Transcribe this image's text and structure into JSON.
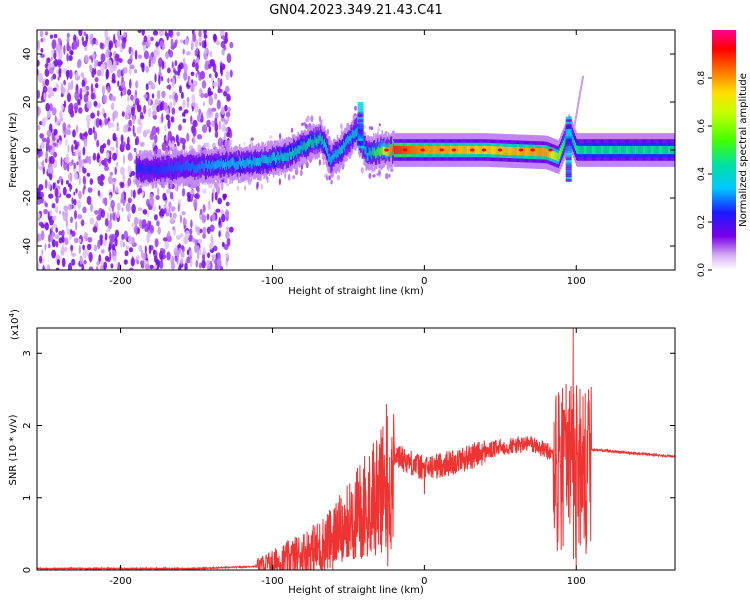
{
  "title": "GN04.2023.349.21.43.C41",
  "colors": {
    "snr_line": "#ee3333",
    "colormap": [
      "#ffffff",
      "#e6c8f7",
      "#a066e8",
      "#6a00e0",
      "#1a1aff",
      "#00c8ff",
      "#00e080",
      "#66ff00",
      "#ffff00",
      "#ff8800",
      "#ff0000",
      "#ff00aa"
    ]
  },
  "chart_data": [
    {
      "type": "heatmap",
      "title": "GN04.2023.349.21.43.C41",
      "xlabel": "Height of straight line (km)",
      "ylabel": "Frequency (Hz)",
      "xlim": [
        -255,
        165
      ],
      "ylim": [
        -50,
        50
      ],
      "x_ticks": [
        -200,
        -100,
        0,
        100
      ],
      "x_tick_labels": [
        "-200",
        "-100",
        "0",
        "100"
      ],
      "y_ticks": [
        40,
        20,
        0,
        -20,
        -40
      ],
      "y_tick_labels": [
        "40",
        "20",
        "0",
        "-20",
        "-40"
      ],
      "colorbar": {
        "label": "Normalized spectral amplitude",
        "range": [
          0,
          1
        ],
        "ticks": [
          0.0,
          0.2,
          0.4,
          0.6,
          0.8
        ],
        "tick_labels": [
          "0.0",
          "0.2",
          "0.4",
          "0.6",
          "0.8"
        ]
      },
      "ridge": {
        "description_points": [
          {
            "x": -180,
            "y": -8,
            "amp": 0.25
          },
          {
            "x": -150,
            "y": -7,
            "amp": 0.3
          },
          {
            "x": -130,
            "y": -6,
            "amp": 0.35
          },
          {
            "x": -110,
            "y": -5,
            "amp": 0.38
          },
          {
            "x": -90,
            "y": -2,
            "amp": 0.42
          },
          {
            "x": -75,
            "y": 3,
            "amp": 0.45
          },
          {
            "x": -68,
            "y": 5,
            "amp": 0.45
          },
          {
            "x": -62,
            "y": -4,
            "amp": 0.35
          },
          {
            "x": -55,
            "y": 0,
            "amp": 0.4
          },
          {
            "x": -45,
            "y": 8,
            "amp": 0.38
          },
          {
            "x": -38,
            "y": -2,
            "amp": 0.4
          },
          {
            "x": -30,
            "y": 0,
            "amp": 0.55
          },
          {
            "x": -20,
            "y": 0,
            "amp": 0.9
          },
          {
            "x": 0,
            "y": 0,
            "amp": 0.8
          },
          {
            "x": 40,
            "y": 0,
            "amp": 0.75
          },
          {
            "x": 80,
            "y": -1,
            "amp": 0.8
          },
          {
            "x": 88,
            "y": -3,
            "amp": 0.6
          },
          {
            "x": 95,
            "y": 8,
            "amp": 0.4
          },
          {
            "x": 100,
            "y": 0,
            "amp": 0.45
          },
          {
            "x": 130,
            "y": 0,
            "amp": 0.45
          },
          {
            "x": 165,
            "y": 0,
            "amp": 0.45
          }
        ]
      }
    },
    {
      "type": "line",
      "xlabel": "Height of straight line (km)",
      "ylabel": "SNR (10 * v/v)",
      "y_multiplier": "(x10",
      "y_multiplier_exp": "4",
      "y_multiplier_close": ")",
      "xlim": [
        -255,
        165
      ],
      "ylim": [
        0,
        3.35
      ],
      "x_ticks": [
        -200,
        -100,
        0,
        100
      ],
      "x_tick_labels": [
        "-200",
        "-100",
        "0",
        "100"
      ],
      "y_ticks": [
        0,
        1,
        2,
        3
      ],
      "y_tick_labels": [
        "0",
        "1",
        "2",
        "3"
      ],
      "series": [
        {
          "envelope": [
            {
              "x": -255,
              "y": 0.02
            },
            {
              "x": -150,
              "y": 0.02
            },
            {
              "x": -110,
              "y": 0.05
            },
            {
              "x": -90,
              "y": 0.15
            },
            {
              "x": -70,
              "y": 0.3
            },
            {
              "x": -60,
              "y": 0.45
            },
            {
              "x": -50,
              "y": 0.7
            },
            {
              "x": -40,
              "y": 1.0
            },
            {
              "x": -30,
              "y": 1.3
            },
            {
              "x": -20,
              "y": 1.6
            },
            {
              "x": 0,
              "y": 1.4
            },
            {
              "x": 20,
              "y": 1.5
            },
            {
              "x": 50,
              "y": 1.7
            },
            {
              "x": 70,
              "y": 1.75
            },
            {
              "x": 85,
              "y": 1.6
            },
            {
              "x": 95,
              "y": 1.7
            },
            {
              "x": 110,
              "y": 1.67
            },
            {
              "x": 130,
              "y": 1.63
            },
            {
              "x": 165,
              "y": 1.57
            }
          ],
          "peaks": [
            {
              "x": -25,
              "y": 2.3
            },
            {
              "x": -24,
              "y": 0.05
            },
            {
              "x": 0,
              "y": 1.05
            },
            {
              "x": 48,
              "y": 1.68
            },
            {
              "x": 98,
              "y": 3.35
            },
            {
              "x": 100,
              "y": 0.07
            },
            {
              "x": 108,
              "y": 2.5
            }
          ]
        }
      ]
    }
  ]
}
